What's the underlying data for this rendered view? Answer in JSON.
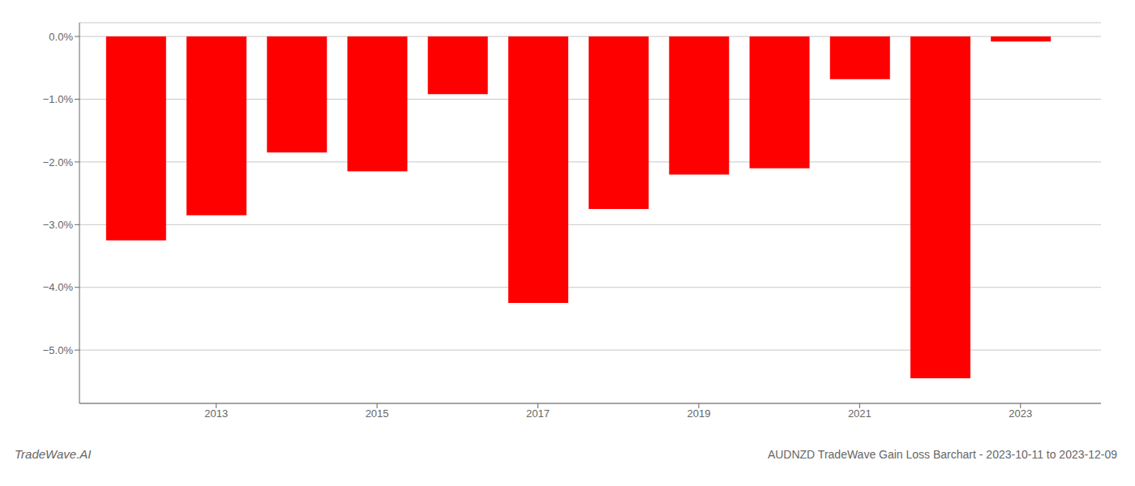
{
  "chart_data": {
    "type": "bar",
    "title": "AUDNZD TradeWave Gain Loss Barchart - 2023-10-11 to 2023-12-09",
    "annotations": [
      "TradeWave.AI"
    ],
    "x": [
      2012,
      2013,
      2014,
      2015,
      2016,
      2017,
      2018,
      2019,
      2020,
      2021,
      2022,
      2023
    ],
    "values": [
      -3.25,
      -2.85,
      -1.85,
      -2.15,
      -0.92,
      -4.25,
      -2.75,
      -2.2,
      -2.1,
      -0.68,
      -5.45,
      -0.08
    ],
    "color": "#ff0000",
    "xlim": [
      2011.3,
      2024.0
    ],
    "xticks": [
      2013,
      2015,
      2017,
      2019,
      2021,
      2023
    ],
    "ylim": [
      -5.85,
      0.22
    ],
    "yticks": [
      {
        "value": 0.0,
        "label": "0.0%"
      },
      {
        "value": -1.0,
        "label": "−1.0%"
      },
      {
        "value": -2.0,
        "label": "−2.0%"
      },
      {
        "value": -3.0,
        "label": "−3.0%"
      },
      {
        "value": -4.0,
        "label": "−4.0%"
      },
      {
        "value": -5.0,
        "label": "−5.0%"
      }
    ],
    "grid": true
  }
}
